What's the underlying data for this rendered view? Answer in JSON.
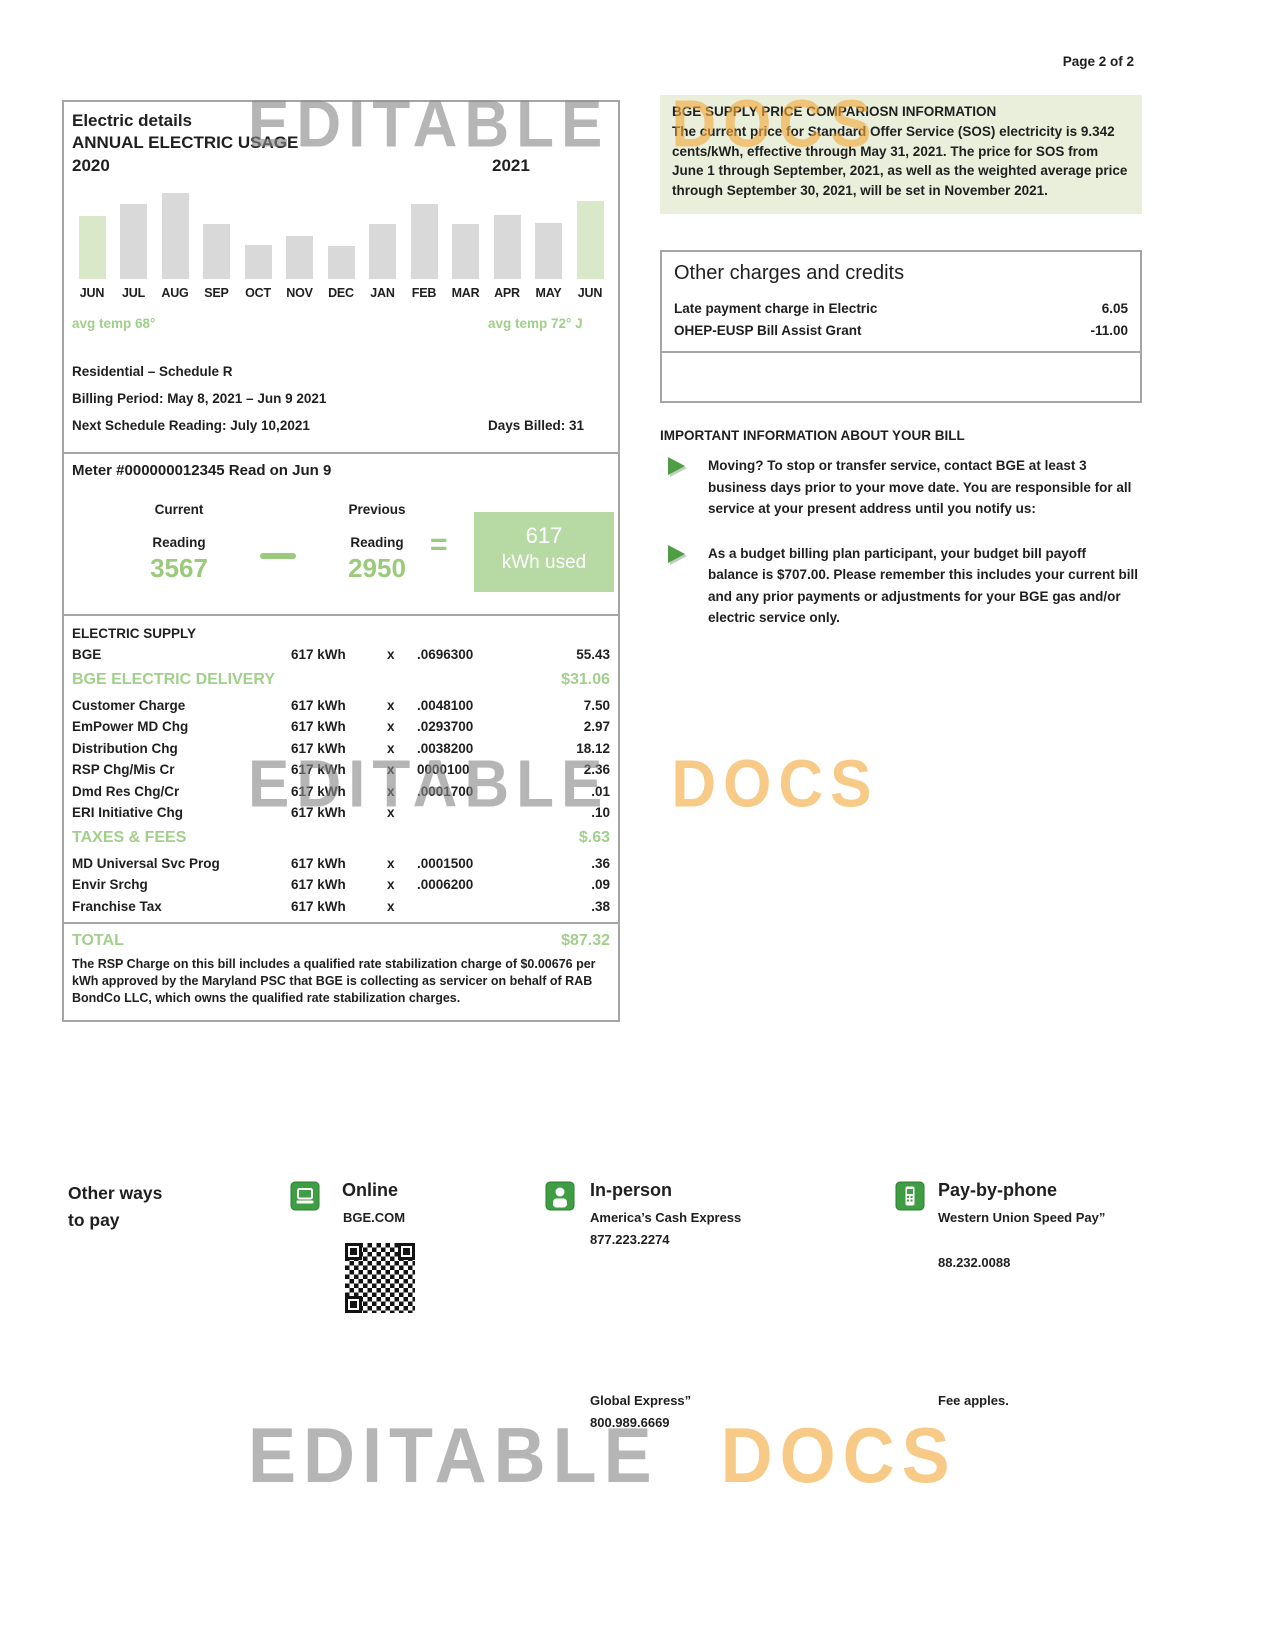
{
  "page": {
    "label": "Page 2 of 2"
  },
  "watermark": {
    "word1": "EDITABLE",
    "word2": "DOCS"
  },
  "electric_details": {
    "title": "Electric details",
    "subtitle": "ANNUAL ELECTRIC USAGE",
    "year_left": "2020",
    "year_right": "2021",
    "avg_temp_left": "avg temp 68°",
    "avg_temp_right": "avg temp 72° J",
    "schedule": "Residential – Schedule R",
    "billing_period": "Billing Period: May 8, 2021 – Jun 9 2021",
    "next_reading": "Next Schedule Reading: July 10,2021",
    "days_billed": "Days Billed: 31"
  },
  "chart_data": {
    "type": "bar",
    "title": "ANNUAL ELECTRIC USAGE",
    "categories": [
      "JUN",
      "JUL",
      "AUG",
      "SEP",
      "OCT",
      "NOV",
      "DEC",
      "JAN",
      "FEB",
      "MAR",
      "APR",
      "MAY",
      "JUN"
    ],
    "values": [
      73,
      87,
      100,
      64,
      40,
      50,
      38,
      64,
      87,
      64,
      74,
      65,
      91
    ],
    "highlighted_indices": [
      0,
      12
    ],
    "xlabel": "",
    "ylabel": "",
    "ylim": [
      0,
      100
    ],
    "bar_color": "#d9d9d9",
    "highlight_color": "#d9e8c9",
    "legend": "none",
    "grid": false
  },
  "meter": {
    "title": "Meter #000000012345 Read on Jun 9",
    "current_label1": "Current",
    "current_label2": "Reading",
    "current_value": "3567",
    "previous_label1": "Previous",
    "previous_label2": "Reading",
    "previous_value": "2950",
    "equals_sign": "=",
    "result_value": "617",
    "result_unit": "kWh used"
  },
  "charges": {
    "sections": [
      {
        "header": "ELECTRIC SUPPLY",
        "green": false,
        "amount": "",
        "rows": [
          [
            "BGE",
            "617 kWh",
            "x",
            ".0696300",
            "55.43"
          ]
        ]
      },
      {
        "header": "BGE ELECTRIC DELIVERY",
        "green": true,
        "amount": "$31.06",
        "rows": [
          [
            "Customer Charge",
            "617 kWh",
            "x",
            ".0048100",
            "7.50"
          ],
          [
            "EmPower MD Chg",
            "617 kWh",
            "x",
            ".0293700",
            "2.97"
          ],
          [
            "Distribution Chg",
            "617 kWh",
            "x",
            ".0038200",
            "18.12"
          ],
          [
            "RSP Chg/Mis Cr",
            "617 kWh",
            "x",
            "0000100",
            "2.36"
          ],
          [
            "Dmd Res Chg/Cr",
            "617 kWh",
            "x",
            ".0001700",
            ".01"
          ],
          [
            "ERI Initiative Chg",
            "617 kWh",
            "x",
            "",
            ".10"
          ]
        ]
      },
      {
        "header": "TAXES & FEES",
        "green": true,
        "amount": "$.63",
        "rows": [
          [
            "MD Universal Svc Prog",
            "617 kWh",
            "x",
            ".0001500",
            ".36"
          ],
          [
            "Envir Srchg",
            "617 kWh",
            "x",
            ".0006200",
            ".09"
          ],
          [
            "Franchise Tax",
            "617 kWh",
            "x",
            "",
            ".38"
          ]
        ]
      }
    ],
    "total_label": "TOTAL",
    "total_amount": "$87.32",
    "note": "The RSP Charge on this bill includes a qualified rate stabilization charge of $0.00676 per kWh approved by the Maryland PSC that BGE is collecting as servicer on behalf of RAB BondCo LLC, which owns the qualified rate stabilization charges."
  },
  "supply_info": {
    "title": "BGE SUPPLY PRICE COMPARIOSN INFORMATION",
    "body": "The current price for Standard Offer Service (SOS) electricity is 9.342 cents/kWh, effective through May 31, 2021. The price for SOS from June 1 through September, 2021, as well as the weighted average price through September 30, 2021, will be set in November 2021."
  },
  "other_charges": {
    "title": "Other charges and credits",
    "rows": [
      {
        "label": "Late payment charge in Electric",
        "amount": "6.05"
      },
      {
        "label": "OHEP-EUSP Bill Assist Grant",
        "amount": "-11.00"
      }
    ]
  },
  "important_info": {
    "title": "IMPORTANT INFORMATION ABOUT YOUR BILL",
    "bullets": [
      "Moving? To stop or transfer service, contact BGE at least 3 business days prior to your move date. You are responsible for all service at your present address until you notify us:",
      "As a budget billing plan participant, your budget bill payoff balance is $707.00. Please remember this includes your current bill and any prior payments or adjustments for your BGE gas and/or electric service only."
    ]
  },
  "other_ways": {
    "heading_line1": "Other ways",
    "heading_line2": "to pay",
    "online": {
      "title": "Online",
      "line1": "BGE.COM"
    },
    "in_person": {
      "title": "In-person",
      "line1": "America’s Cash Express",
      "line2": "877.223.2274",
      "line3": "Global Express”",
      "line4": "800.989.6669"
    },
    "pay_by_phone": {
      "title": "Pay-by-phone",
      "line1": "Western Union Speed Pay”",
      "line2": "88.232.0088",
      "line3": "Fee apples."
    }
  },
  "colors": {
    "green_text": "#9cca80",
    "green_header": "#a3cf8d",
    "green_box": "#b7d9a4",
    "green_bar": "#d9e8c9",
    "gray_bar": "#d9d9d9",
    "green_icon": "#3f9e44",
    "info_bg": "#e9efdb",
    "border_gray": "#a5a5a5",
    "watermark_gray": "#888888",
    "watermark_orange": "#f2aa3e"
  }
}
